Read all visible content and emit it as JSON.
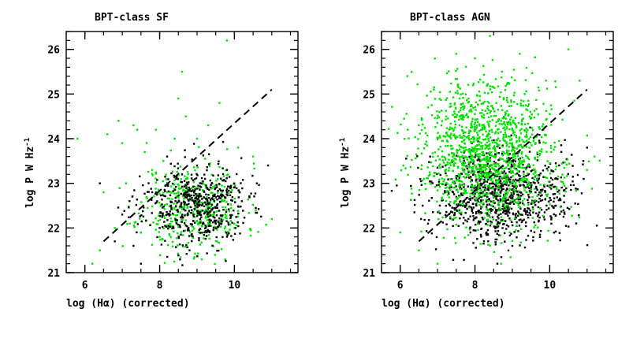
{
  "chart_data": [
    {
      "type": "scatter",
      "title": "BPT-class SF",
      "xlabel": "log (Hα) (corrected)",
      "ylabel": "log P W Hz",
      "ylabel_sup": "-1",
      "xlim": [
        5.5,
        11.7
      ],
      "ylim": [
        21.0,
        26.4
      ],
      "xticks": [
        6,
        8,
        10
      ],
      "yticks": [
        21,
        22,
        23,
        24,
        25,
        26
      ],
      "minor_xstep": 0.5,
      "minor_ystep": 0.2,
      "dashed_line": {
        "x": [
          6.5,
          11.0
        ],
        "y": [
          21.7,
          25.1
        ]
      },
      "series": [
        {
          "color": "#00e000",
          "points": [
            [
              5.8,
              24.0
            ],
            [
              6.5,
              22.8
            ],
            [
              6.6,
              24.1
            ],
            [
              6.9,
              24.4
            ],
            [
              7.0,
              23.9
            ],
            [
              7.3,
              24.3
            ],
            [
              7.4,
              24.2
            ],
            [
              7.6,
              23.7
            ],
            [
              7.8,
              23.3
            ],
            [
              7.2,
              22.1
            ],
            [
              7.5,
              21.9
            ],
            [
              6.8,
              22.0
            ],
            [
              7.1,
              23.0
            ],
            [
              7.9,
              24.2
            ],
            [
              8.1,
              23.5
            ],
            [
              8.4,
              24.0
            ],
            [
              8.5,
              24.9
            ],
            [
              8.6,
              25.5
            ],
            [
              8.7,
              24.5
            ],
            [
              9.0,
              24.0
            ],
            [
              9.3,
              24.3
            ],
            [
              9.6,
              24.8
            ],
            [
              9.8,
              26.2
            ],
            [
              10.1,
              23.8
            ],
            [
              10.5,
              23.6
            ],
            [
              11.0,
              22.2
            ],
            [
              8.2,
              22.8
            ],
            [
              8.0,
              21.8
            ],
            [
              6.4,
              21.5
            ],
            [
              6.2,
              21.2
            ]
          ]
        },
        {
          "color": "#000000",
          "points": [
            [
              6.4,
              23.0
            ],
            [
              6.8,
              21.7
            ],
            [
              7.0,
              22.3
            ],
            [
              7.3,
              21.6
            ],
            [
              7.5,
              21.2
            ],
            [
              7.8,
              22.8
            ],
            [
              8.0,
              22.0
            ],
            [
              8.2,
              23.6
            ],
            [
              8.6,
              23.2
            ],
            [
              9.0,
              23.4
            ],
            [
              9.4,
              23.0
            ],
            [
              9.8,
              22.8
            ],
            [
              10.2,
              22.6
            ],
            [
              10.6,
              23.0
            ],
            [
              10.9,
              23.4
            ],
            [
              8.8,
              21.5
            ],
            [
              9.2,
              21.9
            ],
            [
              9.6,
              22.1
            ]
          ]
        }
      ],
      "clusters": [
        {
          "color": "#00e000",
          "n": 420,
          "center": [
            8.9,
            22.45
          ],
          "sx": 0.7,
          "sy": 0.5,
          "seed": 11
        },
        {
          "color": "#000000",
          "n": 520,
          "center": [
            8.95,
            22.5
          ],
          "sx": 0.7,
          "sy": 0.45,
          "seed": 23
        }
      ]
    },
    {
      "type": "scatter",
      "title": "BPT-class AGN",
      "xlabel": "log (Hα) (corrected)",
      "ylabel": "log P W Hz",
      "ylabel_sup": "-1",
      "xlim": [
        5.5,
        11.7
      ],
      "ylim": [
        21.0,
        26.4
      ],
      "xticks": [
        6,
        8,
        10
      ],
      "yticks": [
        21,
        22,
        23,
        24,
        25,
        26
      ],
      "minor_xstep": 0.5,
      "minor_ystep": 0.2,
      "dashed_line": {
        "x": [
          6.5,
          11.0
        ],
        "y": [
          21.7,
          25.1
        ]
      },
      "series": [
        {
          "color": "#00e000",
          "points": [
            [
              8.4,
              26.3
            ],
            [
              7.5,
              25.9
            ],
            [
              8.0,
              25.8
            ],
            [
              9.2,
              25.9
            ],
            [
              10.5,
              26.0
            ],
            [
              10.8,
              25.3
            ],
            [
              6.2,
              24.2
            ],
            [
              6.0,
              21.9
            ],
            [
              6.5,
              21.5
            ],
            [
              7.0,
              21.2
            ],
            [
              11.0,
              23.3
            ],
            [
              11.2,
              23.6
            ],
            [
              9.9,
              25.3
            ],
            [
              6.9,
              25.1
            ],
            [
              8.7,
              21.2
            ]
          ]
        },
        {
          "color": "#000000",
          "points": [
            [
              8.6,
              21.2
            ],
            [
              9.0,
              21.6
            ],
            [
              10.9,
              23.5
            ],
            [
              11.0,
              23.8
            ],
            [
              6.8,
              23.6
            ],
            [
              6.6,
              22.5
            ]
          ]
        }
      ],
      "clusters": [
        {
          "color": "#000000",
          "n": 900,
          "center": [
            8.7,
            22.75
          ],
          "sx": 0.9,
          "sy": 0.5,
          "seed": 37
        },
        {
          "color": "#00e000",
          "n": 1100,
          "center": [
            8.4,
            23.45
          ],
          "sx": 0.95,
          "sy": 0.7,
          "seed": 53
        },
        {
          "color": "#00e000",
          "n": 300,
          "center": [
            8.2,
            24.5
          ],
          "sx": 0.9,
          "sy": 0.55,
          "seed": 71
        }
      ]
    }
  ]
}
